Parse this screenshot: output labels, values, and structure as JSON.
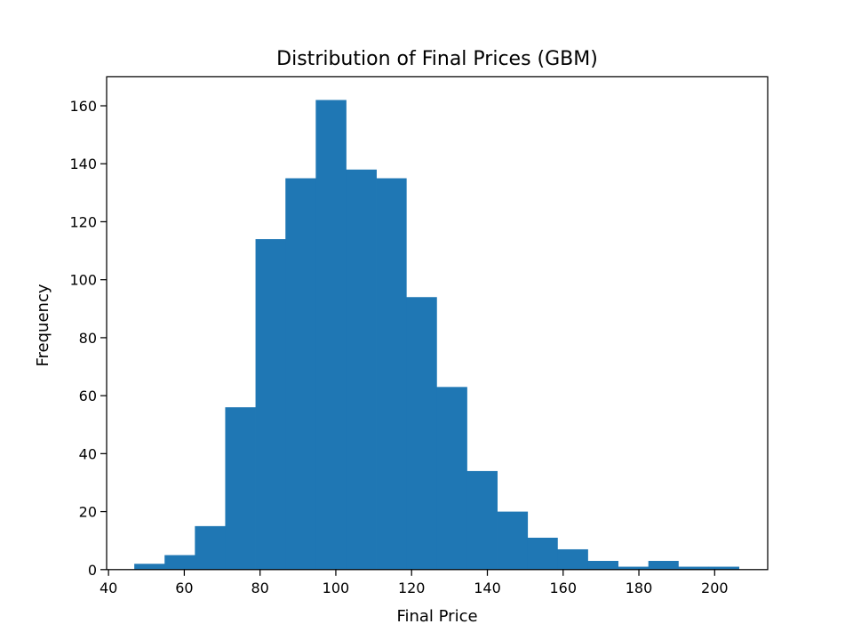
{
  "chart_data": {
    "type": "bar",
    "title": "Distribution of Final Prices (GBM)",
    "xlabel": "Final Price",
    "ylabel": "Frequency",
    "xlim": [
      39.5,
      214
    ],
    "ylim": [
      0,
      170
    ],
    "xticks": [
      40,
      60,
      80,
      100,
      120,
      140,
      160,
      180,
      200
    ],
    "yticks": [
      0,
      20,
      40,
      60,
      80,
      100,
      120,
      140,
      160
    ],
    "bin_edges": [
      46.8,
      54.8,
      62.8,
      70.8,
      78.8,
      86.7,
      94.7,
      102.7,
      110.7,
      118.6,
      126.6,
      134.6,
      142.6,
      150.6,
      158.5,
      166.5,
      174.5,
      182.5,
      190.4,
      198.4,
      206.4
    ],
    "values": [
      2,
      5,
      15,
      56,
      114,
      135,
      162,
      138,
      135,
      94,
      63,
      34,
      20,
      11,
      7,
      3,
      1,
      3,
      1,
      1
    ],
    "bar_color": "#1f77b4",
    "grid": false,
    "legend": false
  }
}
